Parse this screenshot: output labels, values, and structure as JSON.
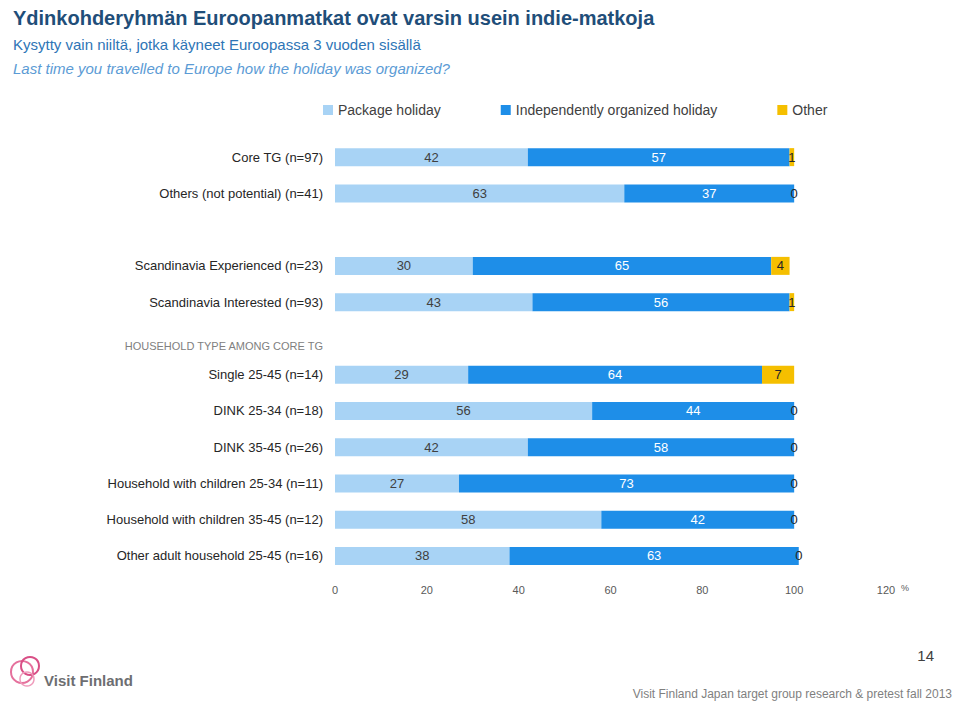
{
  "chart_data": {
    "type": "bar",
    "title": "Ydinkohderyhmän Euroopanmatkat ovat varsin usein indie-matkoja",
    "subtitle": "Kysytty vain niiltä, jotka käyneet Euroopassa 3 vuoden sisällä",
    "question": "Last time you travelled to Europe how the holiday was organized?",
    "annotations": [
      "HOUSEHOLD TYPE AMONG CORE TG"
    ],
    "orientation": "horizontal",
    "stacked": true,
    "data_labels": true,
    "grid": false,
    "legend": "top",
    "xlabel": "%",
    "xlim": [
      0,
      120
    ],
    "xticks": [
      0,
      20,
      40,
      60,
      80,
      100,
      120
    ],
    "categories": [
      "Core TG (n=97)",
      "Others (not potential) (n=41)",
      null,
      "Scandinavia Experienced (n=23)",
      "Scandinavia Interested (n=93)",
      null,
      "Single 25-45 (n=14)",
      "DINK 25-34 (n=18)",
      "DINK 35-45 (n=26)",
      "Household with children 25-34 (n=11)",
      "Household with children 35-45 (n=12)",
      "Other adult household 25-45 (n=16)"
    ],
    "series": [
      {
        "name": "Package holiday",
        "color": "#a8d3f5",
        "values": [
          42,
          63,
          null,
          30,
          43,
          null,
          29,
          56,
          42,
          27,
          58,
          38
        ]
      },
      {
        "name": "Independently organized holiday",
        "color": "#1e8ee8",
        "values": [
          57,
          37,
          null,
          65,
          56,
          null,
          64,
          44,
          58,
          73,
          42,
          63
        ]
      },
      {
        "name": "Other",
        "color": "#f5bf00",
        "values": [
          1,
          0,
          null,
          4,
          1,
          null,
          7,
          0,
          0,
          0,
          0,
          0
        ]
      }
    ],
    "page_number": "14",
    "logo": "Visit Finland",
    "footer": "Visit Finland Japan target group research & pretest fall 2013"
  }
}
